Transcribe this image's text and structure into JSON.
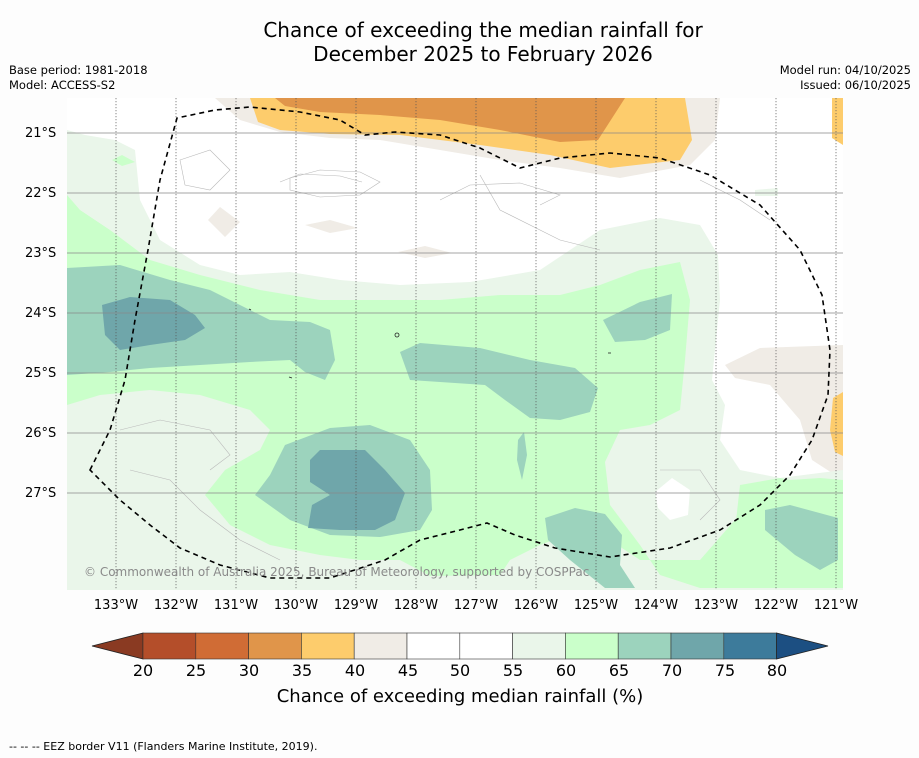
{
  "title_line1": "Chance of exceeding the median rainfall for",
  "title_line2": "December 2025 to February 2026",
  "base_period": "Base period: 1981-2018",
  "model": "Model: ACCESS-S2",
  "model_run": "Model run: 04/10/2025",
  "issued": "Issued: 06/10/2025",
  "copyright": "© Commonwealth of Australia 2025, Bureau of Meteorology, supported by COSPPac",
  "latitude_labels": [
    "21°S",
    "22°S",
    "23°S",
    "24°S",
    "25°S",
    "26°S",
    "27°S"
  ],
  "longitude_labels": [
    "133°W",
    "132°W",
    "131°W",
    "130°W",
    "129°W",
    "128°W",
    "127°W",
    "126°W",
    "125°W",
    "124°W",
    "123°W",
    "122°W",
    "121°W"
  ],
  "colorbar": {
    "ticks": [
      "20",
      "25",
      "30",
      "35",
      "40",
      "45",
      "50",
      "55",
      "60",
      "65",
      "70",
      "75",
      "80"
    ],
    "title": "Chance of exceeding median rainfall (%)",
    "colors": [
      "#b44e2a",
      "#d06c35",
      "#e0954a",
      "#fdcc6c",
      "#f0ece6",
      "#ffffff",
      "#ffffff",
      "#eaf6ea",
      "#caffca",
      "#9cd3bd",
      "#6fa6aa",
      "#3d7b9b"
    ],
    "under_color": "#8a3a22",
    "over_color": "#1c4f82"
  },
  "footnote": "--  --  -- EEZ border V11 (Flanders Marine Institute, 2019)."
}
